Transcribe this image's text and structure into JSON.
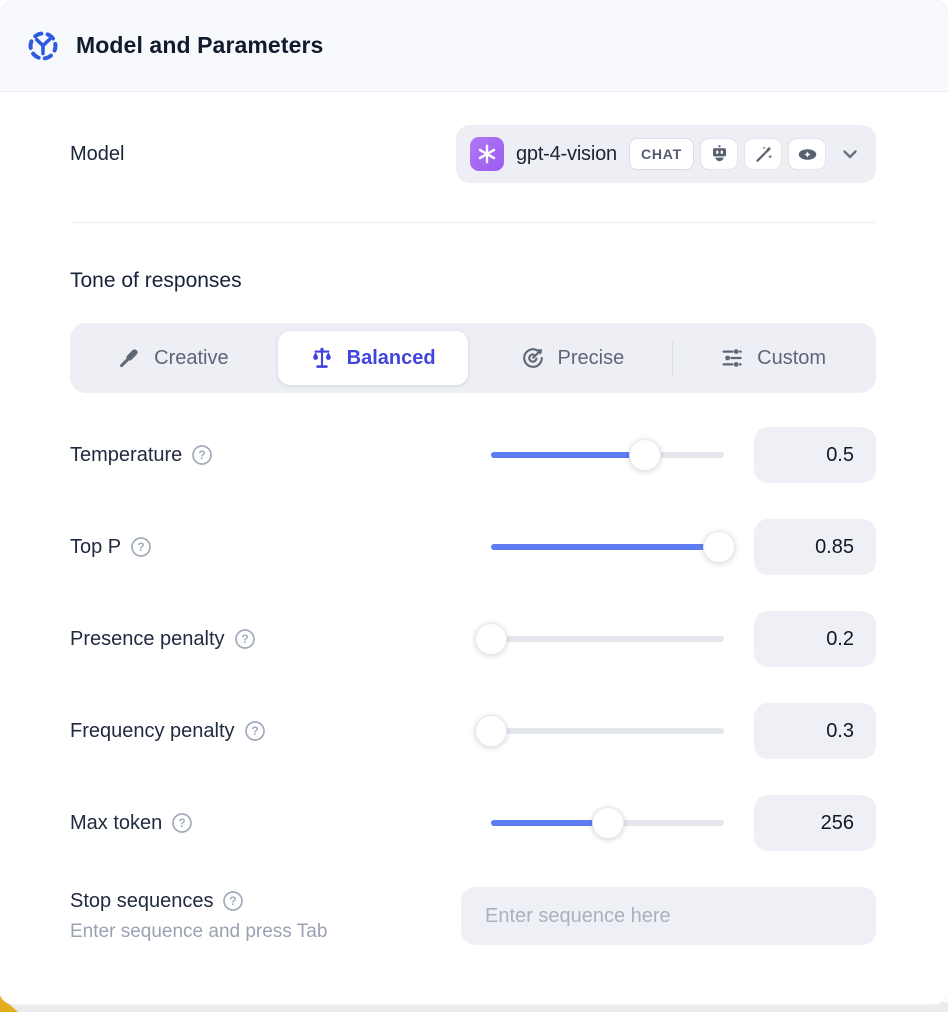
{
  "header": {
    "title": "Model and Parameters"
  },
  "model": {
    "label": "Model",
    "selected": {
      "name": "gpt-4-vision",
      "provider": "openai",
      "provider_color": "#a66cf3",
      "type_badge": "CHAT",
      "capability_icons": [
        "robot-icon",
        "magic-wand-icon",
        "vision-eye-icon"
      ]
    }
  },
  "tone": {
    "heading": "Tone of responses",
    "selected_tab": "Balanced",
    "selected_color": "#4245dd",
    "tabs": [
      {
        "label": "Creative",
        "icon": "paintbrush-icon"
      },
      {
        "label": "Balanced",
        "icon": "balance-scale-icon"
      },
      {
        "label": "Precise",
        "icon": "target-icon"
      },
      {
        "label": "Custom",
        "icon": "sliders-icon"
      }
    ]
  },
  "parameters": [
    {
      "label": "Temperature",
      "value": "0.5",
      "slider_pct": 66
    },
    {
      "label": "Top P",
      "value": "0.85",
      "slider_pct": 98
    },
    {
      "label": "Presence penalty",
      "value": "0.2",
      "slider_pct": 0
    },
    {
      "label": "Frequency penalty",
      "value": "0.3",
      "slider_pct": 0
    },
    {
      "label": "Max token",
      "value": "256",
      "slider_pct": 50
    }
  ],
  "stop_sequences": {
    "label": "Stop sequences",
    "hint": "Enter sequence and press Tab",
    "placeholder": "Enter sequence here"
  },
  "colors": {
    "accent_blue": "#2e5be0",
    "slider_fill": "#5f7df2",
    "field_bg": "#eef0f5",
    "tab_bar_bg": "#edeff5"
  }
}
